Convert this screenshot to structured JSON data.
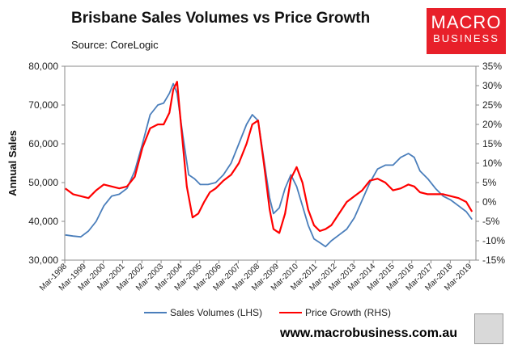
{
  "header": {
    "title": "Brisbane Sales Volumes vs Price Growth",
    "source": "Source: CoreLogic"
  },
  "logo": {
    "line1": "MACRO",
    "line2": "BUSINESS"
  },
  "footer": {
    "url": "www.macrobusiness.com.au"
  },
  "colors": {
    "sales": "#4a7ebb",
    "price": "#ff0000"
  },
  "chart_data": {
    "type": "line",
    "title": "Brisbane Sales Volumes vs Price Growth",
    "xlabel": "",
    "ylabel": "Annual Sales",
    "ylim": [
      30000,
      80000
    ],
    "y2lim": [
      -15,
      35
    ],
    "yticks": [
      "30,000",
      "40,000",
      "50,000",
      "60,000",
      "70,000",
      "80,000"
    ],
    "y2ticks": [
      "-15%",
      "-10%",
      "-5%",
      "0%",
      "5%",
      "10%",
      "15%",
      "20%",
      "25%",
      "30%",
      "35%"
    ],
    "xlim": [
      1998.17,
      2019.5
    ],
    "categories": [
      "Mar-1998",
      "Mar-1999",
      "Mar-2000",
      "Mar-2001",
      "Mar-2002",
      "Mar-2003",
      "Mar-2004",
      "Mar-2005",
      "Mar-2006",
      "Mar-2007",
      "Mar-2008",
      "Mar-2009",
      "Mar-2010",
      "Mar-2011",
      "Mar-2012",
      "Mar-2013",
      "Mar-2014",
      "Mar-2015",
      "Mar-2016",
      "Mar-2017",
      "Mar-2018",
      "Mar-2019"
    ],
    "legend": [
      "Sales Volumes (LHS)",
      "Price Growth (RHS)"
    ],
    "legend_position": "bottom",
    "series": [
      {
        "name": "Sales Volumes (LHS)",
        "axis": "left",
        "x": [
          1998.2,
          1998.6,
          1999.0,
          1999.4,
          1999.8,
          2000.2,
          2000.6,
          2001.0,
          2001.4,
          2001.8,
          2002.2,
          2002.6,
          2003.0,
          2003.3,
          2003.6,
          2003.8,
          2004.0,
          2004.3,
          2004.6,
          2004.9,
          2005.2,
          2005.6,
          2006.0,
          2006.4,
          2006.8,
          2007.2,
          2007.6,
          2007.9,
          2008.2,
          2008.5,
          2008.8,
          2009.0,
          2009.3,
          2009.6,
          2009.9,
          2010.2,
          2010.5,
          2010.8,
          2011.1,
          2011.4,
          2011.7,
          2012.0,
          2012.4,
          2012.8,
          2013.2,
          2013.6,
          2014.0,
          2014.4,
          2014.8,
          2015.2,
          2015.6,
          2016.0,
          2016.3,
          2016.6,
          2017.0,
          2017.4,
          2017.8,
          2018.2,
          2018.6,
          2019.0,
          2019.3
        ],
        "values": [
          36500,
          36200,
          36000,
          37500,
          40000,
          44000,
          46500,
          47000,
          48500,
          53000,
          60000,
          67500,
          70000,
          70500,
          73000,
          75500,
          73000,
          62000,
          52000,
          51000,
          49500,
          49500,
          50000,
          52000,
          55000,
          60000,
          65000,
          67500,
          66000,
          56000,
          46000,
          42000,
          43500,
          48500,
          52000,
          49000,
          44000,
          39000,
          35500,
          34500,
          33500,
          35000,
          36500,
          38000,
          41000,
          45500,
          50000,
          53500,
          54500,
          54500,
          56500,
          57500,
          56500,
          53000,
          51000,
          48500,
          46500,
          45500,
          44000,
          42500,
          40500
        ]
      },
      {
        "name": "Price Growth (RHS)",
        "axis": "right",
        "x": [
          1998.2,
          1998.6,
          1999.0,
          1999.4,
          1999.8,
          2000.2,
          2000.6,
          2001.0,
          2001.4,
          2001.8,
          2002.2,
          2002.6,
          2003.0,
          2003.3,
          2003.6,
          2003.8,
          2004.0,
          2004.2,
          2004.5,
          2004.8,
          2005.1,
          2005.4,
          2005.7,
          2006.0,
          2006.4,
          2006.8,
          2007.2,
          2007.6,
          2007.9,
          2008.2,
          2008.5,
          2008.8,
          2009.0,
          2009.3,
          2009.6,
          2009.9,
          2010.2,
          2010.5,
          2010.8,
          2011.1,
          2011.4,
          2011.7,
          2012.0,
          2012.4,
          2012.8,
          2013.2,
          2013.6,
          2014.0,
          2014.4,
          2014.8,
          2015.2,
          2015.6,
          2016.0,
          2016.3,
          2016.6,
          2017.0,
          2017.4,
          2017.8,
          2018.2,
          2018.6,
          2019.0,
          2019.3
        ],
        "values": [
          3.5,
          2,
          1.5,
          1,
          3,
          4.5,
          4,
          3.5,
          4,
          6.5,
          14,
          19,
          20,
          20,
          23,
          29,
          31,
          20,
          4,
          -4,
          -3,
          0,
          2.5,
          3.5,
          5.5,
          7,
          10,
          15,
          20,
          21,
          10,
          -2,
          -7,
          -8,
          -3,
          6,
          9,
          5,
          -2,
          -6,
          -7.5,
          -7,
          -6,
          -3,
          0,
          1.5,
          3,
          5.5,
          6,
          5,
          3,
          3.5,
          4.5,
          4,
          2.5,
          2,
          2,
          2,
          1.5,
          1,
          0,
          -2.5
        ]
      }
    ]
  }
}
